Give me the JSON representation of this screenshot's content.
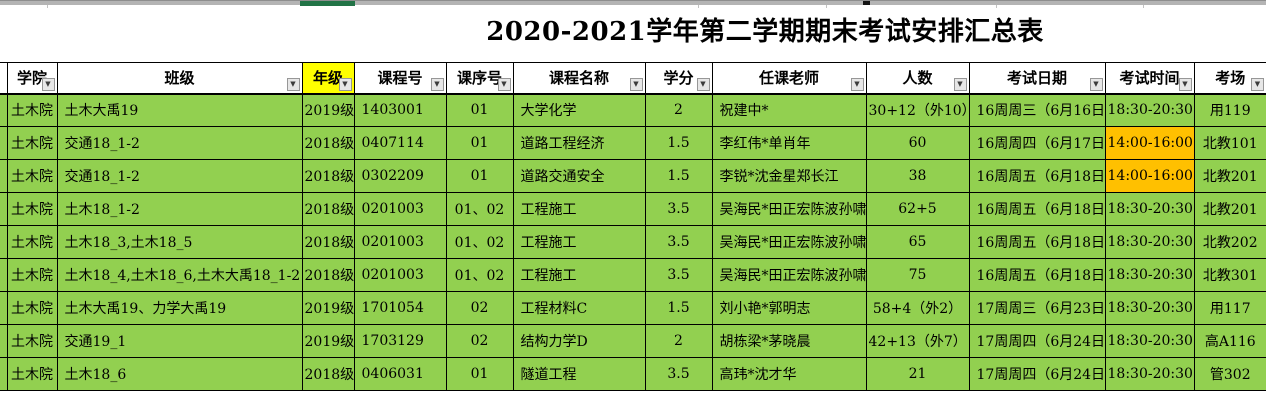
{
  "title": "2020-2021学年第二学期期末考试安排汇总表",
  "table": {
    "columns": [
      {
        "key": "college",
        "label": "学院"
      },
      {
        "key": "class",
        "label": "班级"
      },
      {
        "key": "grade",
        "label": "年级",
        "highlight": true
      },
      {
        "key": "course_no",
        "label": "课程号"
      },
      {
        "key": "section_no",
        "label": "课序号"
      },
      {
        "key": "course_name",
        "label": "课程名称"
      },
      {
        "key": "credits",
        "label": "学分"
      },
      {
        "key": "teacher",
        "label": "任课老师"
      },
      {
        "key": "count",
        "label": "人数"
      },
      {
        "key": "exam_date",
        "label": "考试日期"
      },
      {
        "key": "exam_time",
        "label": "考试时间"
      },
      {
        "key": "room",
        "label": "考场"
      }
    ],
    "rows": [
      {
        "college": "土木院",
        "class": "土木大禹19",
        "grade": "2019级",
        "course_no": "1403001",
        "section_no": "01",
        "course_name": "大学化学",
        "credits": "2",
        "teacher": "祝建中*",
        "count": "30+12（外10）",
        "exam_date": "16周周三（6月16日）",
        "exam_time": "18:30-20:30",
        "room": "用119",
        "time_highlight": false
      },
      {
        "college": "土木院",
        "class": "交通18_1-2",
        "grade": "2018级",
        "course_no": "0407114",
        "section_no": "01",
        "course_name": "道路工程经济",
        "credits": "1.5",
        "teacher": "李红伟*单肖年",
        "count": "60",
        "exam_date": "16周周四（6月17日）",
        "exam_time": "14:00-16:00",
        "room": "北教101",
        "time_highlight": true
      },
      {
        "college": "土木院",
        "class": "交通18_1-2",
        "grade": "2018级",
        "course_no": "0302209",
        "section_no": "01",
        "course_name": "道路交通安全",
        "credits": "1.5",
        "teacher": "李锐*沈金星郑长江",
        "count": "38",
        "exam_date": "16周周五（6月18日）",
        "exam_time": "14:00-16:00",
        "room": "北教201",
        "time_highlight": true
      },
      {
        "college": "土木院",
        "class": "土木18_1-2",
        "grade": "2018级",
        "course_no": "0201003",
        "section_no": "01、02",
        "course_name": "工程施工",
        "credits": "3.5",
        "teacher": "吴海民*田正宏陈波孙啸",
        "count": "62+5",
        "exam_date": "16周周五（6月18日）",
        "exam_time": "18:30-20:30",
        "room": "北教201",
        "time_highlight": false
      },
      {
        "college": "土木院",
        "class": "土木18_3,土木18_5",
        "grade": "2018级",
        "course_no": "0201003",
        "section_no": "01、02",
        "course_name": "工程施工",
        "credits": "3.5",
        "teacher": "吴海民*田正宏陈波孙啸",
        "count": "65",
        "exam_date": "16周周五（6月18日）",
        "exam_time": "18:30-20:30",
        "room": "北教202",
        "time_highlight": false
      },
      {
        "college": "土木院",
        "class": "土木18_4,土木18_6,土木大禹18_1-2",
        "grade": "2018级",
        "course_no": "0201003",
        "section_no": "01、02",
        "course_name": "工程施工",
        "credits": "3.5",
        "teacher": "吴海民*田正宏陈波孙啸",
        "count": "75",
        "exam_date": "16周周五（6月18日）",
        "exam_time": "18:30-20:30",
        "room": "北教301",
        "time_highlight": false
      },
      {
        "college": "土木院",
        "class": "土木大禹19、力学大禹19",
        "grade": "2019级",
        "course_no": "1701054",
        "section_no": "02",
        "course_name": "工程材料C",
        "credits": "1.5",
        "teacher": "刘小艳*郭明志",
        "count": "58+4（外2）",
        "exam_date": "17周周三（6月23日）",
        "exam_time": "18:30-20:30",
        "room": "用117",
        "time_highlight": false
      },
      {
        "college": "土木院",
        "class": "交通19_1",
        "grade": "2019级",
        "course_no": "1703129",
        "section_no": "02",
        "course_name": "结构力学D",
        "credits": "2",
        "teacher": "胡栋梁*茅晓晨",
        "count": "42+13（外7）",
        "exam_date": "17周周四（6月24日）",
        "exam_time": "18:30-20:30",
        "room": "高A116",
        "time_highlight": false
      },
      {
        "college": "土木院",
        "class": "土木18_6",
        "grade": "2018级",
        "course_no": "0406031",
        "section_no": "01",
        "course_name": "隧道工程",
        "credits": "3.5",
        "teacher": "高玮*沈才华",
        "count": "21",
        "exam_date": "17周周四（6月24日）",
        "exam_time": "18:30-20:30",
        "room": "管302",
        "time_highlight": false
      }
    ]
  },
  "icons": {
    "filter_dropdown": "▼"
  },
  "colors": {
    "row_green": "#92D050",
    "grade_yellow": "#FFFF00",
    "time_orange": "#FFC000",
    "strip_dark_green": "#217346"
  }
}
